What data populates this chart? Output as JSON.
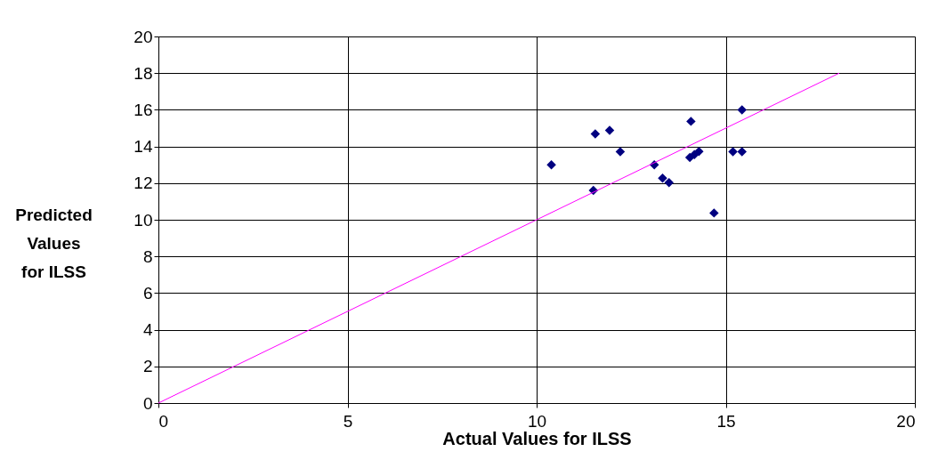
{
  "chart_data": {
    "type": "scatter",
    "xlabel": "Actual Values for ILSS",
    "ylabel": "Predicted Values for ILSS",
    "series": [
      {
        "color": "#000080",
        "marker": "diamond",
        "x": [
          10.39,
          11.55,
          11.93,
          12.21,
          11.5,
          13.11,
          13.33,
          13.5,
          14.08,
          14.05,
          14.17,
          14.29,
          14.69,
          15.19,
          15.43,
          15.43
        ],
        "values": [
          13.0,
          14.68,
          14.88,
          13.71,
          11.6,
          13.0,
          12.27,
          12.03,
          15.37,
          13.4,
          13.56,
          13.72,
          10.37,
          13.71,
          13.71,
          16.0
        ]
      },
      {
        "type": "line",
        "color": "#ff00ff",
        "marker": "none",
        "line_style": "solid",
        "x": [
          0,
          18
        ],
        "values": [
          0,
          18
        ]
      }
    ],
    "xlim": [
      0,
      20
    ],
    "xticks": [
      0,
      5,
      10,
      15,
      20
    ],
    "ylim": [
      0,
      20
    ],
    "yticks": [
      0,
      2,
      4,
      6,
      8,
      10,
      12,
      14,
      16,
      18,
      20
    ],
    "grid": true
  }
}
